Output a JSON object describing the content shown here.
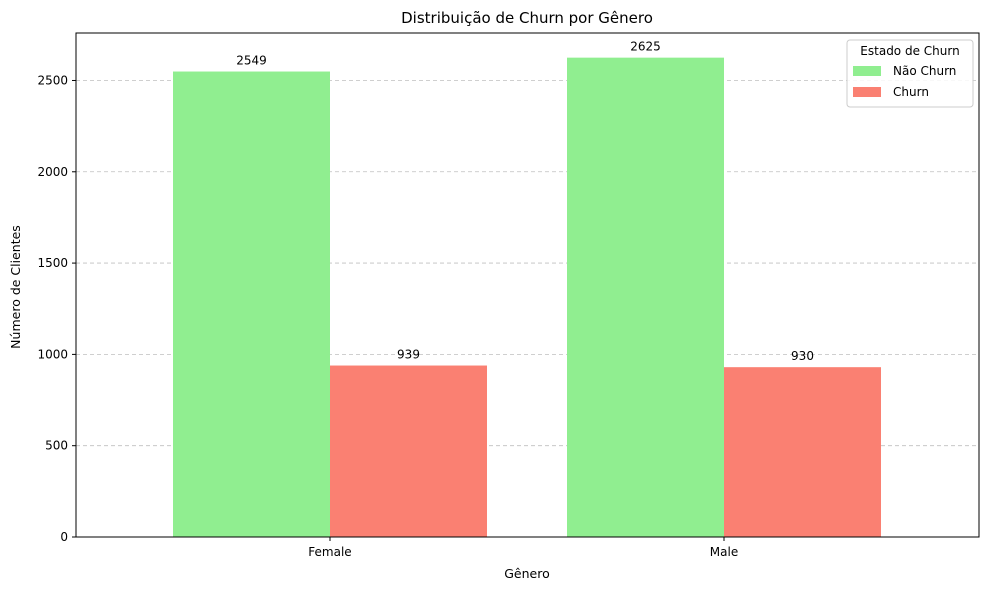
{
  "chart_data": {
    "type": "bar",
    "title": "Distribuição de Churn por Gênero",
    "xlabel": "Gênero",
    "ylabel": "Número de Clientes",
    "categories": [
      "Female",
      "Male"
    ],
    "series": [
      {
        "name": "Não Churn",
        "values": [
          2549,
          2625
        ],
        "color": "#90ee90"
      },
      {
        "name": "Churn",
        "values": [
          939,
          930
        ],
        "color": "#fa8072"
      }
    ],
    "ylim": [
      0,
      2760
    ],
    "yticks": [
      0,
      500,
      1000,
      1500,
      2000,
      2500
    ],
    "grid": "y-dashed",
    "legend": {
      "title": "Estado de Churn",
      "placement": "top-right"
    }
  }
}
